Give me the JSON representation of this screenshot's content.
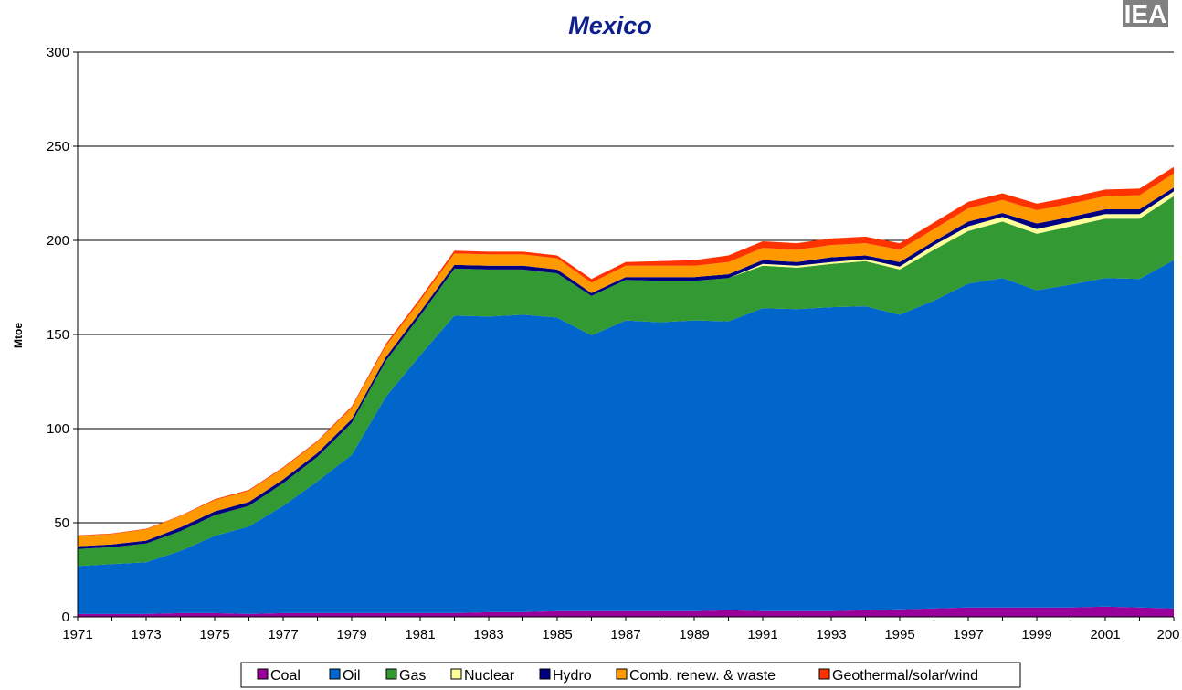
{
  "chart_data": {
    "type": "area",
    "stacked": true,
    "title": "Mexico",
    "ylabel": "Mtoe",
    "xlabel": "",
    "ylim": [
      0,
      300
    ],
    "yticks": [
      0,
      50,
      100,
      150,
      200,
      250,
      300
    ],
    "xtick_labels": [
      "1971",
      "1973",
      "1975",
      "1977",
      "1979",
      "1981",
      "1983",
      "1985",
      "1987",
      "1989",
      "1991",
      "1993",
      "1995",
      "1997",
      "1999",
      "2001",
      "200"
    ],
    "x": [
      1971,
      1972,
      1973,
      1974,
      1975,
      1976,
      1977,
      1978,
      1979,
      1980,
      1981,
      1982,
      1983,
      1984,
      1985,
      1986,
      1987,
      1988,
      1989,
      1990,
      1991,
      1992,
      1993,
      1994,
      1995,
      1996,
      1997,
      1998,
      1999,
      2000,
      2001,
      2002,
      2003
    ],
    "grid": true,
    "legend_position": "bottom",
    "series": [
      {
        "name": "Coal",
        "color": "#990099",
        "values": [
          1.5,
          1.5,
          1.5,
          2,
          2,
          1.5,
          2,
          2,
          2,
          2,
          2,
          2,
          2.5,
          2.5,
          3,
          3,
          3,
          3,
          3,
          3.5,
          3,
          3,
          3,
          3.5,
          4,
          4.5,
          5,
          5,
          5,
          5,
          5.5,
          5,
          4.5
        ]
      },
      {
        "name": "Oil",
        "color": "#0066cc",
        "values": [
          25.5,
          26.5,
          27.5,
          33,
          41,
          46.5,
          57,
          70,
          84,
          115,
          137,
          158,
          157,
          158,
          156,
          146.5,
          154.5,
          153.5,
          154.5,
          153.5,
          161,
          160.5,
          161.5,
          161.5,
          156.5,
          163.5,
          172,
          175,
          168.5,
          171.5,
          174.5,
          174.5,
          185
        ]
      },
      {
        "name": "Gas",
        "color": "#339933",
        "values": [
          9,
          9,
          10,
          10.5,
          11,
          11,
          12,
          13,
          17,
          19,
          21,
          25,
          25,
          24,
          23.5,
          21,
          21.5,
          22,
          21,
          23,
          22.5,
          22,
          23,
          24,
          24,
          27,
          28,
          30,
          30,
          31,
          31.5,
          32,
          34
        ]
      },
      {
        "name": "Nuclear",
        "color": "#ffff99",
        "values": [
          0,
          0,
          0,
          0,
          0,
          0,
          0,
          0,
          0,
          0,
          0,
          0,
          0,
          0,
          0,
          0,
          0,
          0,
          0,
          0,
          1,
          1,
          1,
          1,
          1.5,
          2.5,
          2.5,
          2.5,
          2.5,
          2.5,
          2.5,
          2.5,
          2.5
        ]
      },
      {
        "name": "Hydro",
        "color": "#000080",
        "values": [
          1.5,
          1.5,
          1.5,
          2,
          2,
          2,
          2,
          2,
          2,
          2,
          2,
          2,
          2,
          2,
          2,
          1.5,
          1.5,
          2,
          2,
          2,
          2,
          2,
          2.5,
          2,
          2.5,
          2,
          2.5,
          2,
          3,
          2.5,
          2.5,
          2.5,
          2
        ]
      },
      {
        "name": "Comb. renew. & waste",
        "color": "#ff9900",
        "values": [
          5.5,
          5.5,
          6,
          6,
          6,
          6,
          6,
          6,
          6,
          6,
          6,
          6,
          6,
          6,
          6,
          5.5,
          6,
          6,
          6,
          6.5,
          6.5,
          6.5,
          6.5,
          6.5,
          6.5,
          6.5,
          7,
          7,
          7,
          7,
          7,
          7.5,
          7.5
        ]
      },
      {
        "name": "Geothermal/solar/wind",
        "color": "#ff3300",
        "values": [
          0.3,
          0.3,
          0.3,
          0.3,
          0.5,
          0.5,
          0.5,
          0.5,
          0.8,
          1,
          1.2,
          1.5,
          1.5,
          1.5,
          1.5,
          2,
          2,
          2.5,
          3,
          3.5,
          3.5,
          3.5,
          3.5,
          3.5,
          3.5,
          3.5,
          3.5,
          3.5,
          3.5,
          3.5,
          3.5,
          3.5,
          3.5
        ]
      }
    ]
  },
  "logo": {
    "text": "IEA",
    "color": "#808080"
  }
}
